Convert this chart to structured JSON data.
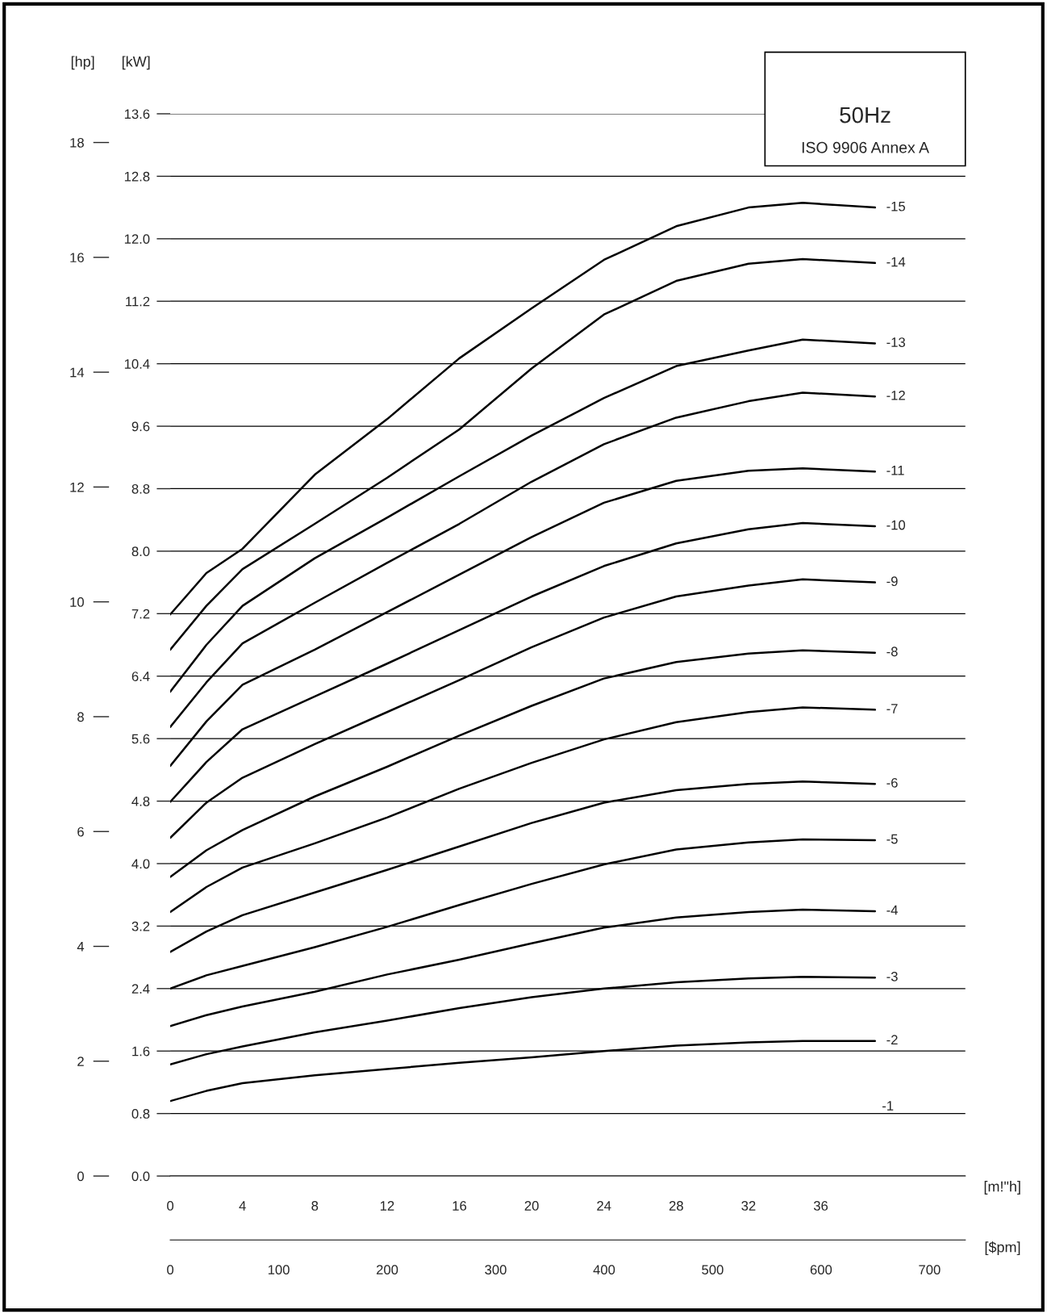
{
  "chart_data": {
    "type": "line",
    "xlabel": "[m!\"h]",
    "x2label": "[$pm]",
    "ylabel": "[kW]",
    "y2label": "[hp]",
    "annotations": [
      "50Hz",
      "ISO 9906 Annex A",
      "-1"
    ],
    "x": [
      0,
      2,
      4,
      8,
      12,
      16,
      20,
      24,
      28,
      32,
      35,
      39
    ],
    "series": [
      {
        "name": "-15",
        "color": "#000000",
        "values": [
          7.19,
          7.72,
          8.03,
          8.98,
          9.69,
          10.47,
          11.11,
          11.73,
          12.16,
          12.4,
          12.46,
          12.4
        ]
      },
      {
        "name": "-14",
        "color": "#000000",
        "values": [
          6.74,
          7.3,
          7.77,
          8.35,
          8.94,
          9.56,
          10.34,
          11.03,
          11.46,
          11.68,
          11.74,
          11.69
        ]
      },
      {
        "name": "-13",
        "color": "#000000",
        "values": [
          6.2,
          6.8,
          7.3,
          7.91,
          8.43,
          8.96,
          9.48,
          9.96,
          10.37,
          10.57,
          10.71,
          10.66
        ]
      },
      {
        "name": "-12",
        "color": "#000000",
        "values": [
          5.75,
          6.32,
          6.82,
          7.34,
          7.85,
          8.35,
          8.89,
          9.37,
          9.71,
          9.92,
          10.03,
          9.98
        ]
      },
      {
        "name": "-11",
        "color": "#000000",
        "values": [
          5.25,
          5.82,
          6.29,
          6.74,
          7.22,
          7.7,
          8.18,
          8.62,
          8.9,
          9.03,
          9.06,
          9.02
        ]
      },
      {
        "name": "-10",
        "color": "#000000",
        "values": [
          4.79,
          5.3,
          5.72,
          6.14,
          6.56,
          6.99,
          7.42,
          7.81,
          8.1,
          8.28,
          8.36,
          8.32
        ]
      },
      {
        "name": "-9",
        "color": "#000000",
        "values": [
          4.33,
          4.78,
          5.1,
          5.53,
          5.94,
          6.35,
          6.77,
          7.15,
          7.42,
          7.56,
          7.64,
          7.6
        ]
      },
      {
        "name": "-8",
        "color": "#000000",
        "values": [
          3.83,
          4.17,
          4.43,
          4.86,
          5.24,
          5.64,
          6.02,
          6.37,
          6.58,
          6.69,
          6.73,
          6.7
        ]
      },
      {
        "name": "-7",
        "color": "#000000",
        "values": [
          3.38,
          3.7,
          3.95,
          4.26,
          4.59,
          4.96,
          5.29,
          5.59,
          5.81,
          5.94,
          6.0,
          5.97
        ]
      },
      {
        "name": "-6",
        "color": "#000000",
        "values": [
          2.87,
          3.13,
          3.34,
          3.63,
          3.92,
          4.22,
          4.52,
          4.78,
          4.94,
          5.02,
          5.05,
          5.02
        ]
      },
      {
        "name": "-5",
        "color": "#000000",
        "values": [
          2.4,
          2.57,
          2.69,
          2.93,
          3.19,
          3.47,
          3.74,
          3.99,
          4.18,
          4.27,
          4.31,
          4.3
        ]
      },
      {
        "name": "-4",
        "color": "#000000",
        "values": [
          1.92,
          2.06,
          2.17,
          2.36,
          2.58,
          2.77,
          2.98,
          3.18,
          3.31,
          3.38,
          3.41,
          3.39
        ]
      },
      {
        "name": "-3",
        "color": "#000000",
        "values": [
          1.43,
          1.56,
          1.66,
          1.84,
          1.99,
          2.15,
          2.29,
          2.4,
          2.48,
          2.53,
          2.55,
          2.54
        ]
      },
      {
        "name": "-2",
        "color": "#000000",
        "values": [
          0.96,
          1.09,
          1.19,
          1.29,
          1.37,
          1.45,
          1.52,
          1.6,
          1.67,
          1.71,
          1.73,
          1.73
        ]
      }
    ],
    "xlim": [
      0,
      44
    ],
    "xticks": [
      0,
      4,
      8,
      12,
      16,
      20,
      24,
      28,
      32,
      36
    ],
    "x2lim": [
      0,
      733
    ],
    "x2ticks": [
      0,
      100,
      200,
      300,
      400,
      500,
      600,
      700
    ],
    "ylim": [
      0,
      13.6
    ],
    "yticks": [
      {
        "value": 0,
        "label": "0.0"
      },
      0.8,
      1.6,
      2.4,
      3.2,
      {
        "value": 4,
        "label": "4.0"
      },
      4.8,
      5.6,
      6.4,
      7.2,
      {
        "value": 8,
        "label": "8.0"
      },
      8.8,
      9.6,
      10.4,
      11.2,
      {
        "value": 12,
        "label": "12.0"
      },
      12.8,
      13.6
    ],
    "y2lim": [
      0,
      18.5
    ],
    "y2ticks": [
      0,
      2,
      4,
      6,
      8,
      10,
      12,
      14,
      16,
      18
    ],
    "grid": "y"
  }
}
